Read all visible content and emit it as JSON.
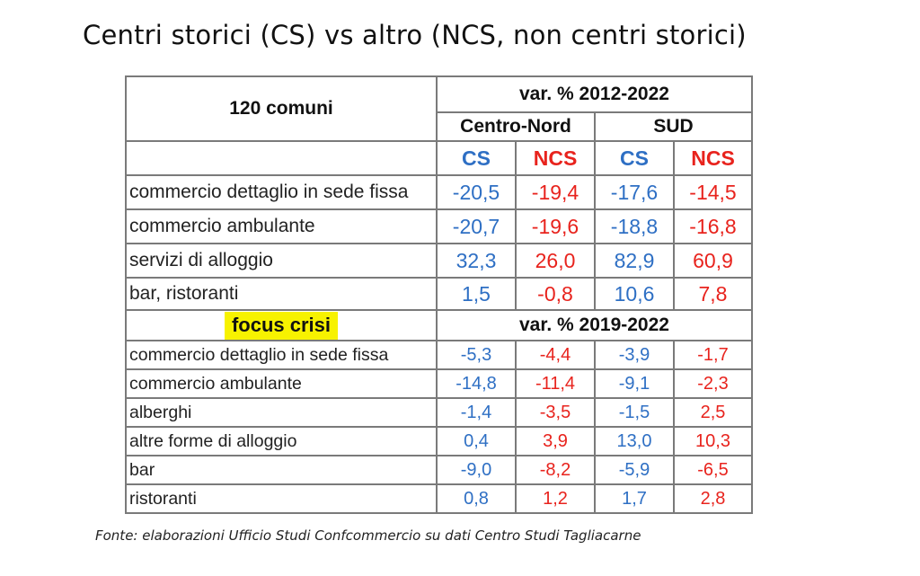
{
  "title": "Centri storici (CS) vs altro (NCS, non centri storici)",
  "table": {
    "corner_label": "120 comuni",
    "period1_label": "var. % 2012-2022",
    "region1": "Centro-Nord",
    "region2": "SUD",
    "col_cs": "CS",
    "col_ncs": "NCS",
    "rows1": [
      {
        "label": "commercio dettaglio in sede fissa",
        "cn_cs": "-20,5",
        "cn_ncs": "-19,4",
        "sud_cs": "-17,6",
        "sud_ncs": "-14,5"
      },
      {
        "label": "commercio ambulante",
        "cn_cs": "-20,7",
        "cn_ncs": "-19,6",
        "sud_cs": "-18,8",
        "sud_ncs": "-16,8"
      },
      {
        "label": "servizi di alloggio",
        "cn_cs": "32,3",
        "cn_ncs": "26,0",
        "sud_cs": "82,9",
        "sud_ncs": "60,9"
      },
      {
        "label": "bar, ristoranti",
        "cn_cs": "1,5",
        "cn_ncs": "-0,8",
        "sud_cs": "10,6",
        "sud_ncs": "7,8"
      }
    ],
    "focus_label": "focus crisi",
    "period2_label": "var. % 2019-2022",
    "rows2": [
      {
        "label": "commercio dettaglio in sede fissa",
        "cn_cs": "-5,3",
        "cn_ncs": "-4,4",
        "sud_cs": "-3,9",
        "sud_ncs": "-1,7"
      },
      {
        "label": "commercio ambulante",
        "cn_cs": "-14,8",
        "cn_ncs": "-11,4",
        "sud_cs": "-9,1",
        "sud_ncs": "-2,3"
      },
      {
        "label": "alberghi",
        "cn_cs": "-1,4",
        "cn_ncs": "-3,5",
        "sud_cs": "-1,5",
        "sud_ncs": "2,5"
      },
      {
        "label": "altre forme di alloggio",
        "cn_cs": "0,4",
        "cn_ncs": "3,9",
        "sud_cs": "13,0",
        "sud_ncs": "10,3"
      },
      {
        "label": "bar",
        "cn_cs": "-9,0",
        "cn_ncs": "-8,2",
        "sud_cs": "-5,9",
        "sud_ncs": "-6,5"
      },
      {
        "label": "ristoranti",
        "cn_cs": "0,8",
        "cn_ncs": "1,2",
        "sud_cs": "1,7",
        "sud_ncs": "2,8"
      }
    ]
  },
  "source": "Fonte: elaborazioni Ufficio Studi Confcommercio su dati Centro Studi Tagliacarne",
  "colors": {
    "cs": "#2e6fc4",
    "ncs": "#e8231d",
    "focus_highlight": "#f7f200",
    "border": "#7a7a7a"
  }
}
